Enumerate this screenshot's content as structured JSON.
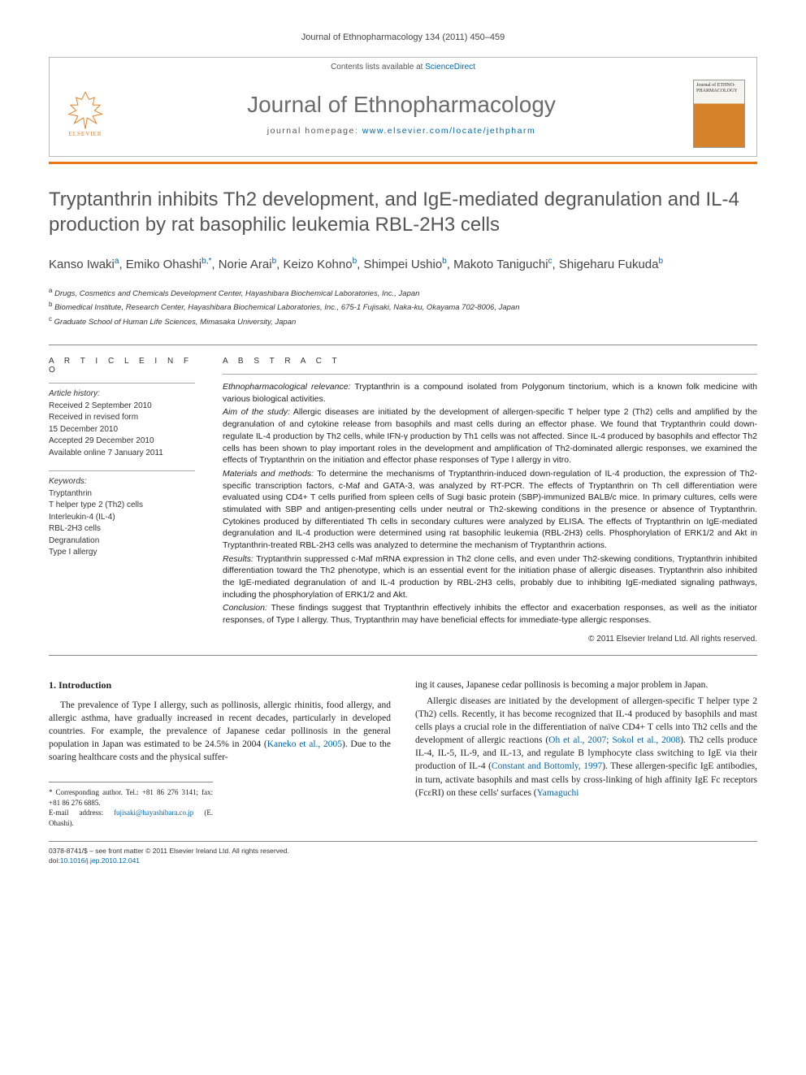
{
  "runningHead": "Journal of Ethnopharmacology 134 (2011) 450–459",
  "masthead": {
    "contentsLine": "Contents lists available at ",
    "contentsLink": "ScienceDirect",
    "journalName": "Journal of Ethnopharmacology",
    "homepagePrefix": "journal homepage: ",
    "homepageUrl": "www.elsevier.com/locate/jethpharm",
    "publisherLabel": "ELSEVIER",
    "coverText": "Journal of ETHNO-PHARMACOLOGY"
  },
  "title": "Tryptanthrin inhibits Th2 development, and IgE-mediated degranulation and IL-4 production by rat basophilic leukemia RBL-2H3 cells",
  "authorsHtml": "Kanso Iwaki<sup>a</sup>, Emiko Ohashi<sup>b,*</sup>, Norie Arai<sup>b</sup>, Keizo Kohno<sup>b</sup>, Shimpei Ushio<sup>b</sup>, Makoto Taniguchi<sup>c</sup>, Shigeharu Fukuda<sup>b</sup>",
  "affiliations": [
    {
      "sup": "a",
      "text": "Drugs, Cosmetics and Chemicals Development Center, Hayashibara Biochemical Laboratories, Inc., Japan"
    },
    {
      "sup": "b",
      "text": "Biomedical Institute, Research Center, Hayashibara Biochemical Laboratories, Inc., 675-1 Fujisaki, Naka-ku, Okayama 702-8006, Japan"
    },
    {
      "sup": "c",
      "text": "Graduate School of Human Life Sciences, Mimasaka University, Japan"
    }
  ],
  "articleInfo": {
    "heading": "A R T I C L E   I N F O",
    "historyLabel": "Article history:",
    "history": [
      "Received 2 September 2010",
      "Received in revised form",
      "15 December 2010",
      "Accepted 29 December 2010",
      "Available online 7 January 2011"
    ],
    "keywordsLabel": "Keywords:",
    "keywords": [
      "Tryptanthrin",
      "T helper type 2 (Th2) cells",
      "Interleukin-4 (IL-4)",
      "RBL-2H3 cells",
      "Degranulation",
      "Type I allergy"
    ]
  },
  "abstract": {
    "heading": "A B S T R A C T",
    "sections": [
      {
        "lead": "Ethnopharmacological relevance:",
        "text": "Tryptanthrin is a compound isolated from Polygonum tinctorium, which is a known folk medicine with various biological activities."
      },
      {
        "lead": "Aim of the study:",
        "text": "Allergic diseases are initiated by the development of allergen-specific T helper type 2 (Th2) cells and amplified by the degranulation of and cytokine release from basophils and mast cells during an effector phase. We found that Tryptanthrin could down-regulate IL-4 production by Th2 cells, while IFN-γ production by Th1 cells was not affected. Since IL-4 produced by basophils and effector Th2 cells has been shown to play important roles in the development and amplification of Th2-dominated allergic responses, we examined the effects of Tryptanthrin on the initiation and effector phase responses of Type I allergy in vitro."
      },
      {
        "lead": "Materials and methods:",
        "text": "To determine the mechanisms of Tryptanthrin-induced down-regulation of IL-4 production, the expression of Th2-specific transcription factors, c-Maf and GATA-3, was analyzed by RT-PCR. The effects of Tryptanthrin on Th cell differentiation were evaluated using CD4+ T cells purified from spleen cells of Sugi basic protein (SBP)-immunized BALB/c mice. In primary cultures, cells were stimulated with SBP and antigen-presenting cells under neutral or Th2-skewing conditions in the presence or absence of Tryptanthrin. Cytokines produced by differentiated Th cells in secondary cultures were analyzed by ELISA. The effects of Tryptanthrin on IgE-mediated degranulation and IL-4 production were determined using rat basophilic leukemia (RBL-2H3) cells. Phosphorylation of ERK1/2 and Akt in Tryptanthrin-treated RBL-2H3 cells was analyzed to determine the mechanism of Tryptanthrin actions."
      },
      {
        "lead": "Results:",
        "text": "Tryptanthrin suppressed c-Maf mRNA expression in Th2 clone cells, and even under Th2-skewing conditions, Tryptanthrin inhibited differentiation toward the Th2 phenotype, which is an essential event for the initiation phase of allergic diseases. Tryptanthrin also inhibited the IgE-mediated degranulation of and IL-4 production by RBL-2H3 cells, probably due to inhibiting IgE-mediated signaling pathways, including the phosphorylation of ERK1/2 and Akt."
      },
      {
        "lead": "Conclusion:",
        "text": "These findings suggest that Tryptanthrin effectively inhibits the effector and exacerbation responses, as well as the initiator responses, of Type I allergy. Thus, Tryptanthrin may have beneficial effects for immediate-type allergic responses."
      }
    ],
    "copyright": "© 2011 Elsevier Ireland Ltd. All rights reserved."
  },
  "intro": {
    "heading": "1.  Introduction",
    "col1p1": "The prevalence of Type I allergy, such as pollinosis, allergic rhinitis, food allergy, and allergic asthma, have gradually increased in recent decades, particularly in developed countries. For example, the prevalence of Japanese cedar pollinosis in the general population in Japan was estimated to be 24.5% in 2004 (",
    "col1link1": "Kaneko et al., 2005",
    "col1p1b": "). Due to the soaring healthcare costs and the physical suffer-",
    "col2p1": "ing it causes, Japanese cedar pollinosis is becoming a major problem in Japan.",
    "col2p2a": "Allergic diseases are initiated by the development of allergen-specific T helper type 2 (Th2) cells. Recently, it has become recognized that IL-4 produced by basophils and mast cells plays a crucial role in the differentiation of naïve CD4+ T cells into Th2 cells and the development of allergic reactions (",
    "col2link1": "Oh et al., 2007; Sokol et al., 2008",
    "col2p2b": "). Th2 cells produce IL-4, IL-5, IL-9, and IL-13, and regulate B lymphocyte class switching to IgE via their production of IL-4 (",
    "col2link2": "Constant and Bottomly, 1997",
    "col2p2c": "). These allergen-specific IgE antibodies, in turn, activate basophils and mast cells by cross-linking of high affinity IgE Fc receptors (FcεRI) on these cells' surfaces (",
    "col2link3": "Yamaguchi"
  },
  "footnotes": {
    "corr": "* Corresponding author. Tel.: +81 86 276 3141; fax: +81 86 276 6885.",
    "emailLabel": "E-mail address: ",
    "email": "fujisaki@hayashibara.co.jp",
    "emailSuffix": " (E. Ohashi)."
  },
  "bottom": {
    "line1": "0378-8741/$ – see front matter © 2011 Elsevier Ireland Ltd. All rights reserved.",
    "doiLabel": "doi:",
    "doi": "10.1016/j.jep.2010.12.041"
  },
  "colors": {
    "accent": "#e67817",
    "link": "#0066aa",
    "titleGray": "#555555"
  }
}
